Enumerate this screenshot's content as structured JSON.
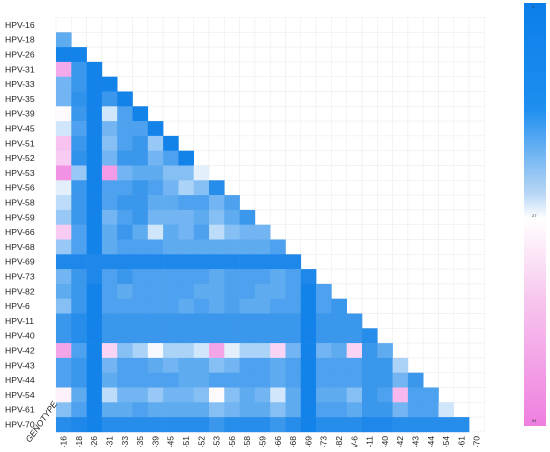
{
  "chart_data": {
    "type": "heatmap",
    "title": "",
    "xlabel": "GENOTYPE",
    "ylabel": "",
    "genotypes": [
      "HPV-16",
      "HPV-18",
      "HPV-26",
      "HPV-31",
      "HPV-33",
      "HPV-35",
      "HPV-39",
      "HPV-45",
      "HPV-51",
      "HPV-52",
      "HPV-53",
      "HPV-56",
      "HPV-58",
      "HPV-59",
      "HPV-66",
      "HPV-68",
      "HPV-69",
      "HPV-73",
      "HPV-82",
      "HPV-6",
      "HPV-11",
      "HPV-40",
      "HPV-42",
      "HPV-43",
      "HPV-44",
      "HPV-54",
      "HPV-61",
      "HPV-70"
    ],
    "color_scale": {
      "min": 1,
      "mid": 27,
      "max": 54,
      "tick_labels": [
        "1",
        "27",
        "54"
      ],
      "colors": [
        "#0b7ee8",
        "#ffffff",
        "#ef7fdf"
      ]
    },
    "matrix": [
      [],
      [
        10
      ],
      [
        2,
        2
      ],
      [
        45,
        6,
        2
      ],
      [
        12,
        6,
        2,
        2
      ],
      [
        12,
        5,
        2,
        6,
        2
      ],
      [
        28,
        6,
        2,
        22,
        8,
        2
      ],
      [
        22,
        8,
        2,
        12,
        8,
        8,
        2
      ],
      [
        40,
        6,
        2,
        14,
        8,
        6,
        16,
        2
      ],
      [
        38,
        5,
        2,
        12,
        6,
        6,
        12,
        8,
        2
      ],
      [
        50,
        16,
        2,
        48,
        12,
        10,
        10,
        14,
        14,
        24
      ],
      [
        24,
        6,
        2,
        8,
        8,
        6,
        8,
        12,
        18,
        14,
        4
      ],
      [
        20,
        6,
        2,
        8,
        6,
        6,
        10,
        10,
        8,
        8,
        12,
        8
      ],
      [
        16,
        6,
        2,
        12,
        8,
        6,
        12,
        12,
        12,
        10,
        14,
        10,
        6
      ],
      [
        38,
        8,
        2,
        10,
        6,
        10,
        22,
        10,
        12,
        8,
        20,
        14,
        12,
        12
      ],
      [
        16,
        8,
        2,
        10,
        8,
        8,
        8,
        10,
        10,
        10,
        10,
        10,
        10,
        10,
        8
      ],
      [
        3,
        3,
        3,
        3,
        3,
        3,
        3,
        3,
        3,
        3,
        3,
        3,
        3,
        3,
        3,
        3
      ],
      [
        12,
        6,
        3,
        8,
        6,
        8,
        8,
        8,
        8,
        8,
        10,
        8,
        8,
        8,
        10,
        8,
        3
      ],
      [
        10,
        6,
        2,
        8,
        10,
        8,
        8,
        8,
        8,
        10,
        10,
        8,
        8,
        10,
        10,
        8,
        2,
        8
      ],
      [
        14,
        6,
        2,
        8,
        8,
        8,
        8,
        8,
        10,
        8,
        10,
        8,
        10,
        10,
        8,
        8,
        2,
        8,
        6
      ],
      [
        6,
        4,
        2,
        6,
        6,
        6,
        6,
        6,
        6,
        6,
        6,
        6,
        6,
        6,
        6,
        6,
        2,
        6,
        6,
        6
      ],
      [
        6,
        4,
        2,
        6,
        6,
        6,
        6,
        6,
        6,
        6,
        6,
        6,
        6,
        6,
        6,
        6,
        2,
        6,
        6,
        6,
        4
      ],
      [
        46,
        8,
        2,
        36,
        14,
        18,
        26,
        18,
        18,
        22,
        46,
        24,
        18,
        18,
        36,
        12,
        2,
        12,
        10,
        36,
        6,
        10
      ],
      [
        8,
        6,
        2,
        12,
        8,
        8,
        10,
        12,
        10,
        10,
        14,
        12,
        8,
        8,
        10,
        8,
        2,
        8,
        8,
        8,
        6,
        6,
        18
      ],
      [
        8,
        6,
        2,
        10,
        8,
        8,
        8,
        8,
        10,
        10,
        8,
        8,
        8,
        8,
        10,
        8,
        2,
        8,
        8,
        8,
        6,
        6,
        12,
        6
      ],
      [
        30,
        10,
        2,
        20,
        12,
        12,
        16,
        12,
        12,
        14,
        28,
        14,
        10,
        12,
        22,
        10,
        2,
        10,
        10,
        14,
        6,
        8,
        42,
        8,
        8
      ],
      [
        14,
        8,
        2,
        10,
        10,
        8,
        10,
        10,
        10,
        10,
        14,
        12,
        10,
        10,
        14,
        10,
        2,
        8,
        8,
        10,
        6,
        6,
        12,
        8,
        8,
        22
      ],
      [
        4,
        3,
        2,
        4,
        4,
        4,
        4,
        4,
        4,
        4,
        6,
        4,
        4,
        4,
        6,
        4,
        2,
        4,
        4,
        4,
        3,
        3,
        4,
        4,
        4,
        4,
        4
      ]
    ]
  }
}
